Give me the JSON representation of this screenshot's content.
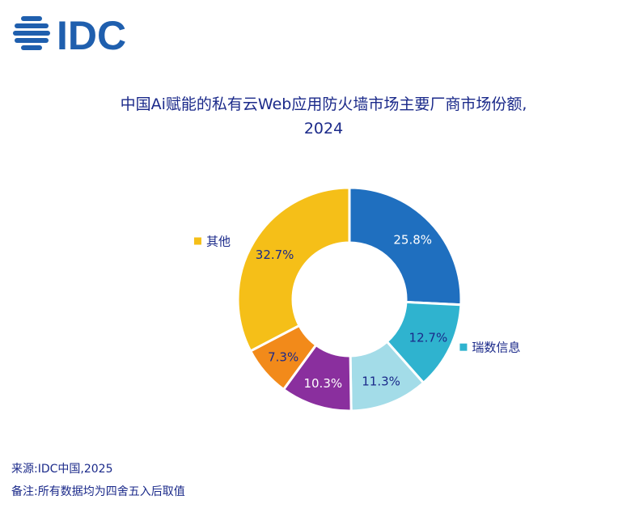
{
  "brand": {
    "logo_text": "IDC",
    "logo_color": "#1f5fae"
  },
  "title_lines": [
    "中国Ai赋能的私有云Web应用防火墙市场主要厂商市场份额,",
    "2024"
  ],
  "footer": {
    "source": "来源:IDC中国,2025",
    "note": "备注:所有数据均为四舍五入后取值"
  },
  "chart_data": {
    "type": "pie",
    "donut": true,
    "title": "中国Ai赋能的私有云Web应用防火墙市场主要厂商市场份额, 2024",
    "unit": "%",
    "slices": [
      {
        "value": 25.8,
        "label": "25.8%",
        "color": "#1f6fbf",
        "label_color": "#ffffff",
        "legend": ""
      },
      {
        "value": 12.7,
        "label": "12.7%",
        "color": "#2fb3cf",
        "label_color": "#1b2a8a",
        "legend": "瑞数信息"
      },
      {
        "value": 11.3,
        "label": "11.3%",
        "color": "#a3dce8",
        "label_color": "#1b2a8a",
        "legend": ""
      },
      {
        "value": 10.3,
        "label": "10.3%",
        "color": "#8a2f9e",
        "label_color": "#ffffff",
        "legend": ""
      },
      {
        "value": 7.3,
        "label": "7.3%",
        "color": "#f28a1a",
        "label_color": "#1b2a8a",
        "legend": ""
      },
      {
        "value": 32.7,
        "label": "32.7%",
        "color": "#f5bf18",
        "label_color": "#1b2a8a",
        "legend": "其他"
      }
    ]
  }
}
